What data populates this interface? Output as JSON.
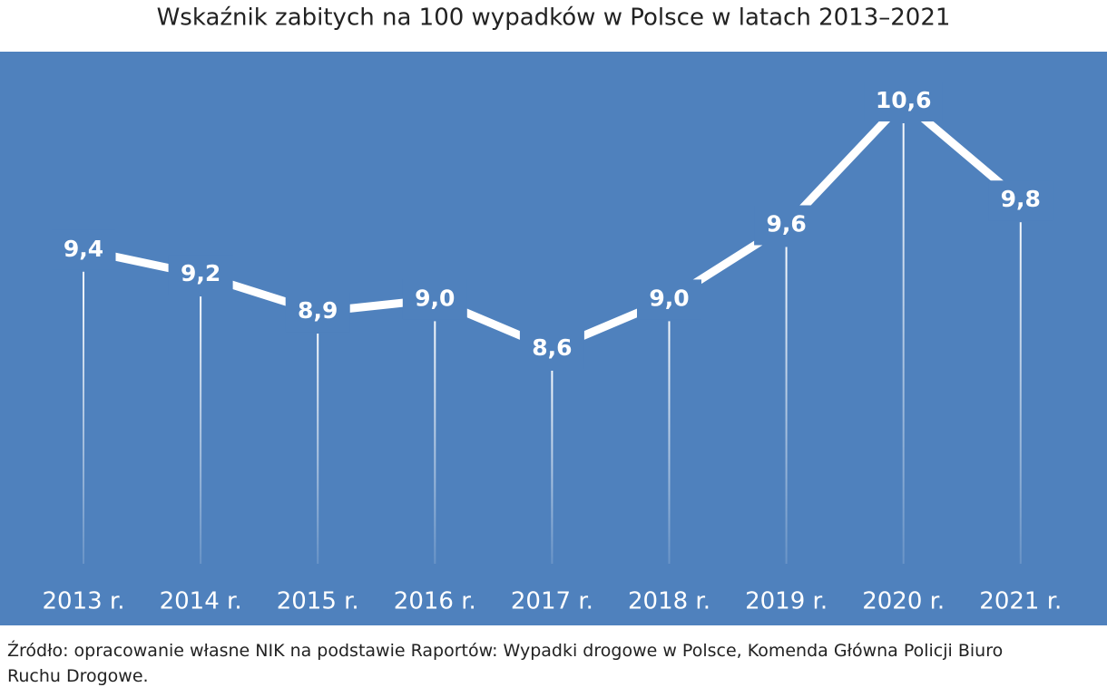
{
  "chart_data": {
    "type": "line",
    "title": "Wskaźnik zabitych na 100 wypadków w Polsce w latach 2013–2021",
    "categories": [
      "2013 r.",
      "2014 r.",
      "2015 r.",
      "2016 r.",
      "2017 r.",
      "2018 r.",
      "2019 r.",
      "2020 r.",
      "2021 r."
    ],
    "values": [
      9.4,
      9.2,
      8.9,
      9.0,
      8.6,
      9.0,
      9.6,
      10.6,
      9.8
    ],
    "value_labels": [
      "9,4",
      "9,2",
      "8,9",
      "9,0",
      "8,6",
      "9,0",
      "9,6",
      "10,6",
      "9,8"
    ],
    "color": "#ffffff",
    "source": "Źródło: opracowanie własne NIK na podstawie Raportów: Wypadki drogowe w Polsce, Komenda Główna Policji Biuro Ruchu Drogowe."
  }
}
